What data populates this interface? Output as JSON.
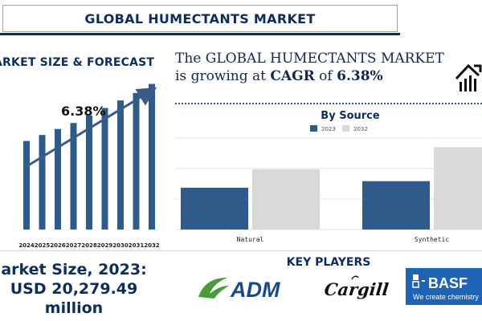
{
  "title": "GLOBAL HUMECTANTS MARKET",
  "left_heading": "ARKET SIZE & FORECAST",
  "headline": {
    "part1": "The GLOBAL HUMECTANTS MARKET is growing at ",
    "cagr_label": "CAGR",
    "part2": " of ",
    "cagr_value": "6.38%"
  },
  "market_size": {
    "line1": "arket Size, 2023:",
    "line2": "USD 20,279.49",
    "line3": "million"
  },
  "key_players_title": "KEY PLAYERS",
  "logos": {
    "adm": "ADM",
    "cargill": "Cargill",
    "basf": "BASF",
    "basf_tagline": "We create chemistry"
  },
  "colors": {
    "navy": "#0f2d5c",
    "bar_blue": "#2e5b8a",
    "bar_grey": "#d9d9d9",
    "adm_green": "#4a9b3a"
  },
  "chart_data": [
    {
      "type": "bar",
      "categories": [
        "2024",
        "2025",
        "2026",
        "2027",
        "2028",
        "2029",
        "2030",
        "2031",
        "2032"
      ],
      "values": [
        59,
        63,
        67,
        71,
        76,
        81,
        86,
        91,
        97
      ],
      "annotation": "6.38%",
      "y_axis_visible": false,
      "grid": false
    },
    {
      "type": "bar",
      "title": "By Source",
      "categories": [
        "Natural",
        "Synthetic"
      ],
      "series": [
        {
          "name": "2023",
          "values": [
            32,
            37
          ]
        },
        {
          "name": "2032",
          "values": [
            46,
            63
          ]
        }
      ],
      "ylim": [
        0,
        70
      ],
      "grid": true,
      "legend_position": "top"
    }
  ]
}
